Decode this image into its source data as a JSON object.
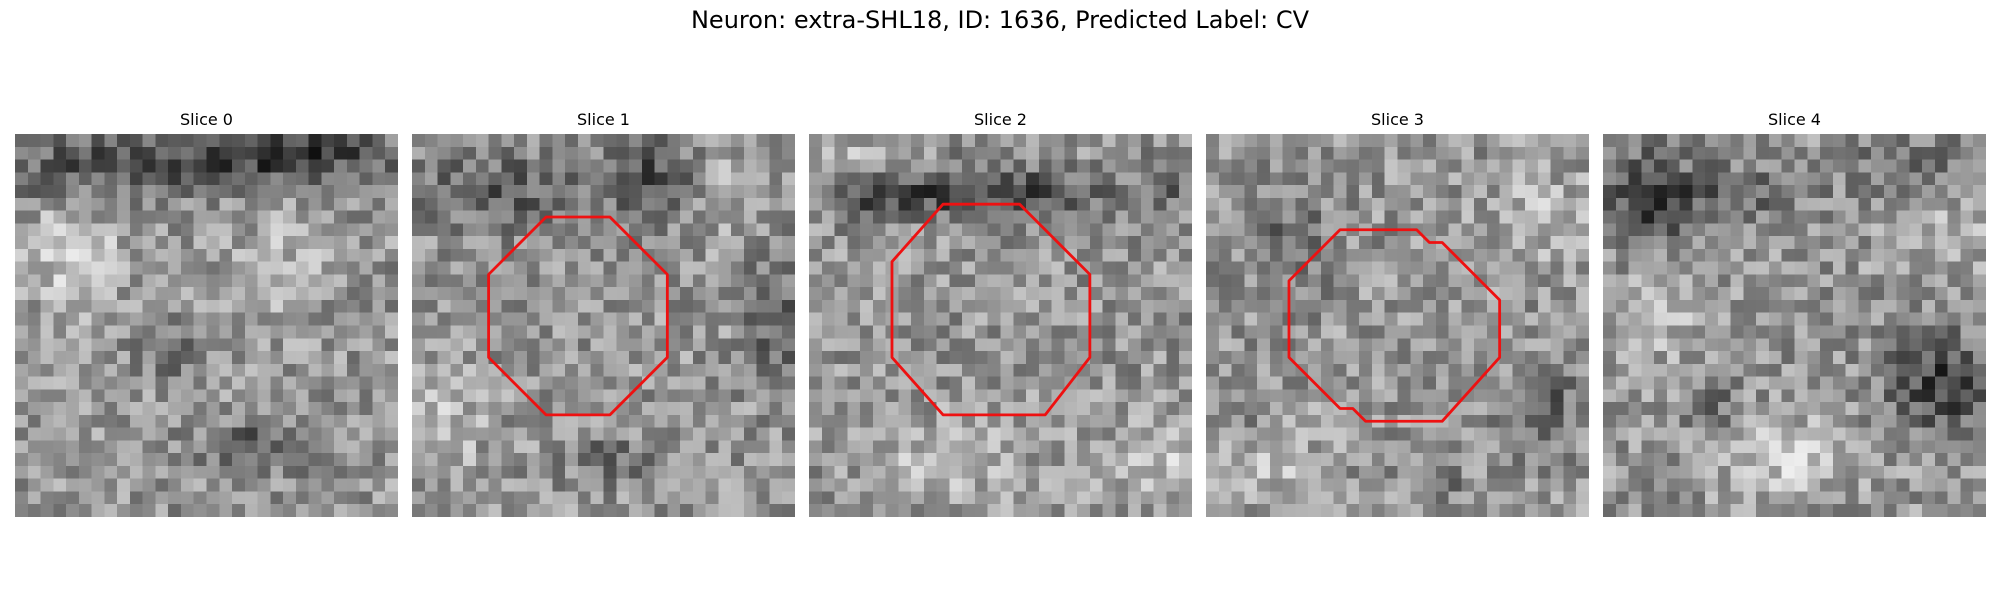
{
  "figure": {
    "title": "Neuron: extra-SHL18, ID: 1636, Predicted Label: CV",
    "outline_color": "#ee1111",
    "colormap": "gray",
    "panels": [
      {
        "title": "Slice 0",
        "seed": 11,
        "has_outline": false
      },
      {
        "title": "Slice 1",
        "seed": 23,
        "has_outline": true
      },
      {
        "title": "Slice 2",
        "seed": 37,
        "has_outline": true
      },
      {
        "title": "Slice 3",
        "seed": 51,
        "has_outline": true
      },
      {
        "title": "Slice 4",
        "seed": 67,
        "has_outline": false
      }
    ]
  }
}
